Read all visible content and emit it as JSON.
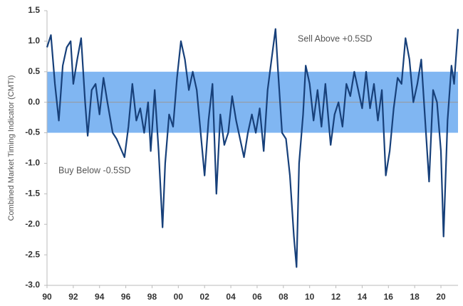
{
  "chart_data": {
    "type": "line",
    "y_label": "Combined Market Timing Indicator (CMTI)",
    "annotations": [
      "Sell Above +0.5SD",
      "Buy Below -0.5SD"
    ],
    "shaded_band": [
      -0.5,
      0.5
    ],
    "band_color": "#80b6f2",
    "xlim": [
      1990,
      2021.3
    ],
    "ylim": [
      -3.0,
      1.5
    ],
    "xticks": [
      {
        "value": 1990,
        "label": "90"
      },
      {
        "value": 1992,
        "label": "92"
      },
      {
        "value": 1994,
        "label": "94"
      },
      {
        "value": 1996,
        "label": "96"
      },
      {
        "value": 1998,
        "label": "98"
      },
      {
        "value": 2000,
        "label": "00"
      },
      {
        "value": 2002,
        "label": "02"
      },
      {
        "value": 2004,
        "label": "04"
      },
      {
        "value": 2006,
        "label": "06"
      },
      {
        "value": 2008,
        "label": "08"
      },
      {
        "value": 2010,
        "label": "10"
      },
      {
        "value": 2012,
        "label": "12"
      },
      {
        "value": 2014,
        "label": "14"
      },
      {
        "value": 2016,
        "label": "16"
      },
      {
        "value": 2018,
        "label": "18"
      },
      {
        "value": 2020,
        "label": "20"
      }
    ],
    "yticks": [
      1.5,
      {
        "value": 1.0,
        "label": "1.0"
      },
      0.5,
      {
        "value": 0.0,
        "label": "0.0"
      },
      -0.5,
      {
        "value": -1.0,
        "label": "-1.0"
      },
      -1.5,
      {
        "value": -2.0,
        "label": "-2.0"
      },
      -2.5,
      {
        "value": -3.0,
        "label": "-3.0"
      }
    ],
    "color": "#17407a",
    "x": [
      1990,
      1990.3,
      1990.6,
      1990.9,
      1991.2,
      1991.5,
      1991.8,
      1992.0,
      1992.3,
      1992.6,
      1992.9,
      1993.1,
      1993.4,
      1993.7,
      1994.0,
      1994.3,
      1994.6,
      1995.0,
      1995.3,
      1995.6,
      1995.9,
      1996.2,
      1996.5,
      1996.8,
      1997.1,
      1997.4,
      1997.7,
      1997.9,
      1998.2,
      1998.5,
      1998.8,
      1999.0,
      1999.3,
      1999.6,
      1999.9,
      2000.2,
      2000.5,
      2000.8,
      2001.1,
      2001.4,
      2001.7,
      2002.0,
      2002.3,
      2002.6,
      2002.9,
      2003.2,
      2003.5,
      2003.8,
      2004.1,
      2004.4,
      2004.7,
      2005.0,
      2005.3,
      2005.6,
      2005.9,
      2006.2,
      2006.5,
      2006.8,
      2007.1,
      2007.4,
      2007.6,
      2007.9,
      2008.2,
      2008.5,
      2008.8,
      2009.0,
      2009.2,
      2009.5,
      2009.7,
      2010.0,
      2010.3,
      2010.6,
      2010.9,
      2011.2,
      2011.6,
      2011.9,
      2012.2,
      2012.5,
      2012.8,
      2013.1,
      2013.4,
      2013.7,
      2014.0,
      2014.3,
      2014.6,
      2014.9,
      2015.2,
      2015.5,
      2015.8,
      2016.1,
      2016.4,
      2016.7,
      2017.0,
      2017.3,
      2017.6,
      2017.9,
      2018.2,
      2018.5,
      2018.8,
      2019.1,
      2019.4,
      2019.7,
      2020.0,
      2020.2,
      2020.5,
      2020.8,
      2021.0,
      2021.3
    ],
    "values": [
      0.9,
      1.1,
      0.3,
      -0.3,
      0.6,
      0.9,
      1.0,
      0.3,
      0.7,
      1.05,
      0.0,
      -0.55,
      0.2,
      0.3,
      -0.2,
      0.4,
      0.0,
      -0.5,
      -0.6,
      -0.75,
      -0.9,
      -0.4,
      0.3,
      -0.3,
      -0.1,
      -0.5,
      0.0,
      -0.8,
      0.2,
      -0.8,
      -2.05,
      -1.0,
      -0.2,
      -0.4,
      0.4,
      1.0,
      0.7,
      0.2,
      0.5,
      0.2,
      -0.5,
      -1.2,
      -0.3,
      0.3,
      -1.5,
      -0.2,
      -0.7,
      -0.5,
      0.1,
      -0.3,
      -0.6,
      -0.9,
      -0.5,
      -0.2,
      -0.5,
      -0.1,
      -0.8,
      0.2,
      0.7,
      1.2,
      0.5,
      -0.5,
      -0.6,
      -1.2,
      -2.2,
      -2.7,
      -1.0,
      -0.2,
      0.6,
      0.3,
      -0.3,
      0.2,
      -0.4,
      0.3,
      -0.7,
      -0.2,
      0.0,
      -0.4,
      0.3,
      0.1,
      0.5,
      0.2,
      -0.1,
      0.5,
      -0.1,
      0.3,
      -0.3,
      0.2,
      -1.2,
      -0.8,
      -0.1,
      0.4,
      0.3,
      1.05,
      0.7,
      0.0,
      0.3,
      0.7,
      -0.3,
      -1.3,
      0.2,
      0.0,
      -0.8,
      -2.2,
      -0.3,
      0.6,
      0.3,
      1.2
    ]
  }
}
